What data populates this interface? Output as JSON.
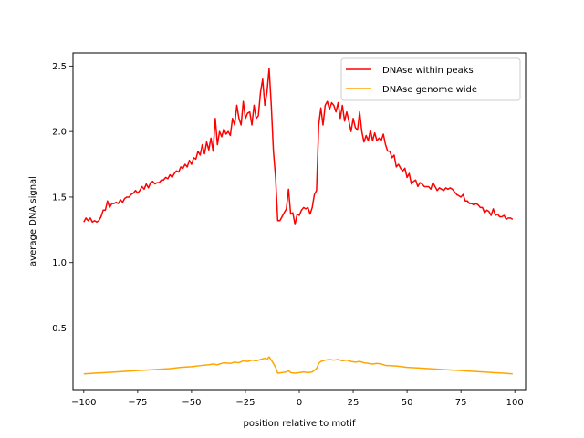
{
  "chart_data": {
    "type": "line",
    "title": "",
    "xlabel": "position relative to motif",
    "ylabel": "average DNA signal",
    "xlim": [
      -105,
      105
    ],
    "ylim": [
      0.03,
      2.6
    ],
    "xticks": [
      -100,
      -75,
      -50,
      -25,
      0,
      25,
      50,
      75,
      100
    ],
    "yticks": [
      0.5,
      1.0,
      1.5,
      2.0,
      2.5
    ],
    "xtick_labels": [
      "−100",
      "−75",
      "−50",
      "−25",
      "0",
      "25",
      "50",
      "75",
      "100"
    ],
    "ytick_labels": [
      "0.5",
      "1.0",
      "1.5",
      "2.0",
      "2.5"
    ],
    "grid": false,
    "legend_position": "top-right",
    "series": [
      {
        "name": "DNAse within peaks",
        "color": "#ff0000",
        "points": [
          [
            -100,
            1.31
          ],
          [
            -99,
            1.34
          ],
          [
            -98,
            1.32
          ],
          [
            -97,
            1.34
          ],
          [
            -96,
            1.31
          ],
          [
            -95,
            1.32
          ],
          [
            -94,
            1.31
          ],
          [
            -93,
            1.32
          ],
          [
            -92,
            1.35
          ],
          [
            -91,
            1.4
          ],
          [
            -90,
            1.4
          ],
          [
            -89,
            1.47
          ],
          [
            -88,
            1.42
          ],
          [
            -87,
            1.45
          ],
          [
            -86,
            1.45
          ],
          [
            -85,
            1.46
          ],
          [
            -84,
            1.45
          ],
          [
            -83,
            1.48
          ],
          [
            -82,
            1.46
          ],
          [
            -81,
            1.49
          ],
          [
            -80,
            1.5
          ],
          [
            -79,
            1.5
          ],
          [
            -78,
            1.52
          ],
          [
            -77,
            1.53
          ],
          [
            -76,
            1.55
          ],
          [
            -75,
            1.53
          ],
          [
            -74,
            1.55
          ],
          [
            -73,
            1.58
          ],
          [
            -72,
            1.56
          ],
          [
            -71,
            1.6
          ],
          [
            -70,
            1.57
          ],
          [
            -69,
            1.61
          ],
          [
            -68,
            1.62
          ],
          [
            -67,
            1.6
          ],
          [
            -66,
            1.61
          ],
          [
            -65,
            1.61
          ],
          [
            -64,
            1.63
          ],
          [
            -63,
            1.63
          ],
          [
            -62,
            1.65
          ],
          [
            -61,
            1.64
          ],
          [
            -60,
            1.67
          ],
          [
            -59,
            1.65
          ],
          [
            -58,
            1.68
          ],
          [
            -57,
            1.7
          ],
          [
            -56,
            1.69
          ],
          [
            -55,
            1.73
          ],
          [
            -54,
            1.72
          ],
          [
            -53,
            1.75
          ],
          [
            -52,
            1.73
          ],
          [
            -51,
            1.78
          ],
          [
            -50,
            1.75
          ],
          [
            -49,
            1.8
          ],
          [
            -48,
            1.79
          ],
          [
            -47,
            1.85
          ],
          [
            -46,
            1.82
          ],
          [
            -45,
            1.9
          ],
          [
            -44,
            1.83
          ],
          [
            -43,
            1.92
          ],
          [
            -42,
            1.86
          ],
          [
            -41,
            1.95
          ],
          [
            -40,
            1.85
          ],
          [
            -39,
            2.1
          ],
          [
            -38,
            1.9
          ],
          [
            -37,
            2.0
          ],
          [
            -36,
            1.96
          ],
          [
            -35,
            2.02
          ],
          [
            -34,
            1.98
          ],
          [
            -33,
            2.0
          ],
          [
            -32,
            1.97
          ],
          [
            -31,
            2.1
          ],
          [
            -30,
            2.05
          ],
          [
            -29,
            2.2
          ],
          [
            -28,
            2.1
          ],
          [
            -27,
            2.05
          ],
          [
            -26,
            2.23
          ],
          [
            -25,
            2.1
          ],
          [
            -24,
            2.14
          ],
          [
            -23,
            2.15
          ],
          [
            -22,
            2.05
          ],
          [
            -21,
            2.2
          ],
          [
            -20,
            2.1
          ],
          [
            -19,
            2.12
          ],
          [
            -18,
            2.3
          ],
          [
            -17,
            2.4
          ],
          [
            -16,
            2.2
          ],
          [
            -15,
            2.3
          ],
          [
            -14,
            2.48
          ],
          [
            -13,
            2.2
          ],
          [
            -12,
            1.85
          ],
          [
            -11,
            1.65
          ],
          [
            -10,
            1.32
          ],
          [
            -9,
            1.32
          ],
          [
            -8,
            1.35
          ],
          [
            -7,
            1.38
          ],
          [
            -6,
            1.41
          ],
          [
            -5,
            1.56
          ],
          [
            -4,
            1.37
          ],
          [
            -3,
            1.38
          ],
          [
            -2,
            1.29
          ],
          [
            -1,
            1.37
          ],
          [
            0,
            1.36
          ],
          [
            1,
            1.4
          ],
          [
            2,
            1.42
          ],
          [
            3,
            1.41
          ],
          [
            4,
            1.42
          ],
          [
            5,
            1.37
          ],
          [
            6,
            1.42
          ],
          [
            7,
            1.52
          ],
          [
            8,
            1.55
          ],
          [
            9,
            2.05
          ],
          [
            10,
            2.18
          ],
          [
            11,
            2.05
          ],
          [
            12,
            2.2
          ],
          [
            13,
            2.23
          ],
          [
            14,
            2.17
          ],
          [
            15,
            2.22
          ],
          [
            16,
            2.2
          ],
          [
            17,
            2.15
          ],
          [
            18,
            2.22
          ],
          [
            19,
            2.1
          ],
          [
            20,
            2.2
          ],
          [
            21,
            2.08
          ],
          [
            22,
            2.15
          ],
          [
            23,
            2.08
          ],
          [
            24,
            2.0
          ],
          [
            25,
            2.1
          ],
          [
            26,
            2.03
          ],
          [
            27,
            2.01
          ],
          [
            28,
            2.15
          ],
          [
            29,
            2.0
          ],
          [
            30,
            1.92
          ],
          [
            31,
            1.97
          ],
          [
            32,
            1.93
          ],
          [
            33,
            2.01
          ],
          [
            34,
            1.93
          ],
          [
            35,
            1.99
          ],
          [
            36,
            1.93
          ],
          [
            37,
            1.95
          ],
          [
            38,
            1.93
          ],
          [
            39,
            1.98
          ],
          [
            40,
            1.9
          ],
          [
            41,
            1.85
          ],
          [
            42,
            1.85
          ],
          [
            43,
            1.8
          ],
          [
            44,
            1.82
          ],
          [
            45,
            1.73
          ],
          [
            46,
            1.75
          ],
          [
            47,
            1.72
          ],
          [
            48,
            1.7
          ],
          [
            49,
            1.72
          ],
          [
            50,
            1.65
          ],
          [
            51,
            1.68
          ],
          [
            52,
            1.6
          ],
          [
            53,
            1.62
          ],
          [
            54,
            1.63
          ],
          [
            55,
            1.58
          ],
          [
            56,
            1.61
          ],
          [
            57,
            1.6
          ],
          [
            58,
            1.58
          ],
          [
            59,
            1.58
          ],
          [
            60,
            1.58
          ],
          [
            61,
            1.56
          ],
          [
            62,
            1.61
          ],
          [
            63,
            1.58
          ],
          [
            64,
            1.55
          ],
          [
            65,
            1.57
          ],
          [
            66,
            1.56
          ],
          [
            67,
            1.55
          ],
          [
            68,
            1.57
          ],
          [
            69,
            1.56
          ],
          [
            70,
            1.57
          ],
          [
            71,
            1.56
          ],
          [
            72,
            1.54
          ],
          [
            73,
            1.52
          ],
          [
            74,
            1.51
          ],
          [
            75,
            1.5
          ],
          [
            76,
            1.52
          ],
          [
            77,
            1.47
          ],
          [
            78,
            1.47
          ],
          [
            79,
            1.45
          ],
          [
            80,
            1.45
          ],
          [
            81,
            1.44
          ],
          [
            82,
            1.45
          ],
          [
            83,
            1.44
          ],
          [
            84,
            1.42
          ],
          [
            85,
            1.42
          ],
          [
            86,
            1.38
          ],
          [
            87,
            1.4
          ],
          [
            88,
            1.39
          ],
          [
            89,
            1.36
          ],
          [
            90,
            1.41
          ],
          [
            91,
            1.36
          ],
          [
            92,
            1.37
          ],
          [
            93,
            1.35
          ],
          [
            94,
            1.35
          ],
          [
            95,
            1.36
          ],
          [
            96,
            1.33
          ],
          [
            97,
            1.34
          ],
          [
            98,
            1.34
          ],
          [
            99,
            1.33
          ]
        ]
      },
      {
        "name": "DNAse genome wide",
        "color": "#ffa500",
        "points": [
          [
            -100,
            0.15
          ],
          [
            -95,
            0.155
          ],
          [
            -90,
            0.16
          ],
          [
            -85,
            0.165
          ],
          [
            -80,
            0.17
          ],
          [
            -75,
            0.175
          ],
          [
            -70,
            0.18
          ],
          [
            -65,
            0.185
          ],
          [
            -60,
            0.19
          ],
          [
            -55,
            0.2
          ],
          [
            -50,
            0.205
          ],
          [
            -45,
            0.215
          ],
          [
            -42,
            0.22
          ],
          [
            -40,
            0.225
          ],
          [
            -38,
            0.22
          ],
          [
            -35,
            0.235
          ],
          [
            -32,
            0.23
          ],
          [
            -30,
            0.24
          ],
          [
            -28,
            0.235
          ],
          [
            -26,
            0.25
          ],
          [
            -24,
            0.245
          ],
          [
            -22,
            0.255
          ],
          [
            -20,
            0.25
          ],
          [
            -18,
            0.26
          ],
          [
            -16,
            0.27
          ],
          [
            -15,
            0.26
          ],
          [
            -14,
            0.28
          ],
          [
            -13,
            0.255
          ],
          [
            -12,
            0.23
          ],
          [
            -11,
            0.2
          ],
          [
            -10,
            0.155
          ],
          [
            -8,
            0.16
          ],
          [
            -6,
            0.165
          ],
          [
            -5,
            0.175
          ],
          [
            -4,
            0.16
          ],
          [
            -2,
            0.155
          ],
          [
            0,
            0.16
          ],
          [
            2,
            0.165
          ],
          [
            4,
            0.16
          ],
          [
            6,
            0.165
          ],
          [
            8,
            0.19
          ],
          [
            9,
            0.23
          ],
          [
            10,
            0.245
          ],
          [
            12,
            0.255
          ],
          [
            14,
            0.26
          ],
          [
            16,
            0.255
          ],
          [
            18,
            0.26
          ],
          [
            20,
            0.25
          ],
          [
            22,
            0.255
          ],
          [
            24,
            0.245
          ],
          [
            26,
            0.24
          ],
          [
            28,
            0.245
          ],
          [
            30,
            0.235
          ],
          [
            32,
            0.23
          ],
          [
            34,
            0.225
          ],
          [
            36,
            0.23
          ],
          [
            38,
            0.225
          ],
          [
            40,
            0.215
          ],
          [
            45,
            0.21
          ],
          [
            50,
            0.2
          ],
          [
            55,
            0.195
          ],
          [
            60,
            0.19
          ],
          [
            65,
            0.185
          ],
          [
            70,
            0.18
          ],
          [
            75,
            0.175
          ],
          [
            80,
            0.17
          ],
          [
            85,
            0.165
          ],
          [
            90,
            0.16
          ],
          [
            95,
            0.155
          ],
          [
            99,
            0.15
          ]
        ]
      }
    ]
  }
}
